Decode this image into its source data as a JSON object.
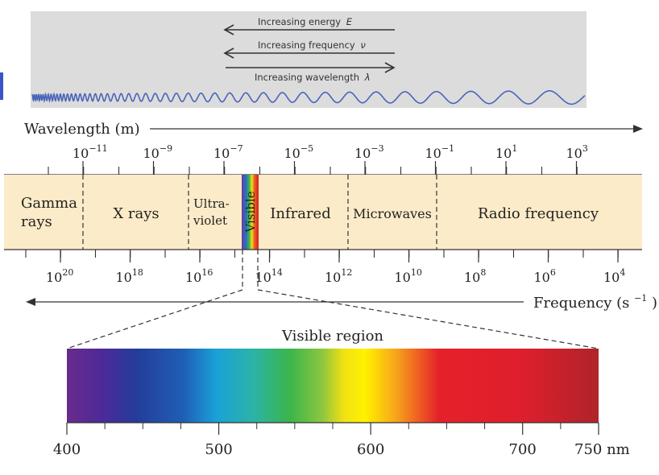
{
  "top_panel": {
    "energy_label": "Increasing energy",
    "energy_symbol": "E",
    "frequency_label": "Increasing frequency",
    "frequency_symbol": "ν",
    "wavelength_label": "Increasing wavelength",
    "wavelength_symbol": "λ"
  },
  "wavelength_axis": {
    "label": "Wavelength (m)",
    "ticks": [
      {
        "base": "10",
        "exp": "−11"
      },
      {
        "base": "10",
        "exp": "−9"
      },
      {
        "base": "10",
        "exp": "−7"
      },
      {
        "base": "10",
        "exp": "−5"
      },
      {
        "base": "10",
        "exp": "−3"
      },
      {
        "base": "10",
        "exp": "−1"
      },
      {
        "base": "10",
        "exp": "1"
      },
      {
        "base": "10",
        "exp": "3"
      }
    ]
  },
  "regions": {
    "gamma_line1": "Gamma",
    "gamma_line2": "rays",
    "xrays": "X rays",
    "uv_line1": "Ultra-",
    "uv_line2": "violet",
    "visible": "Visible",
    "infrared": "Infrared",
    "microwaves": "Microwaves",
    "radio": "Radio frequency"
  },
  "frequency_axis": {
    "label_text": "Frequency (s",
    "label_exp": "−1",
    "label_close": ")",
    "ticks": [
      {
        "base": "10",
        "exp": "20"
      },
      {
        "base": "10",
        "exp": "18"
      },
      {
        "base": "10",
        "exp": "16"
      },
      {
        "base": "10",
        "exp": "14"
      },
      {
        "base": "10",
        "exp": "12"
      },
      {
        "base": "10",
        "exp": "10"
      },
      {
        "base": "10",
        "exp": "8"
      },
      {
        "base": "10",
        "exp": "6"
      },
      {
        "base": "10",
        "exp": "4"
      }
    ]
  },
  "visible_region": {
    "title": "Visible region",
    "ticks": [
      "400",
      "500",
      "600",
      "700",
      "750 nm"
    ]
  },
  "colors": {
    "panel_bg": "#dcdcdc",
    "band_bg": "#fcebc8",
    "wave": "#4a64b8"
  }
}
